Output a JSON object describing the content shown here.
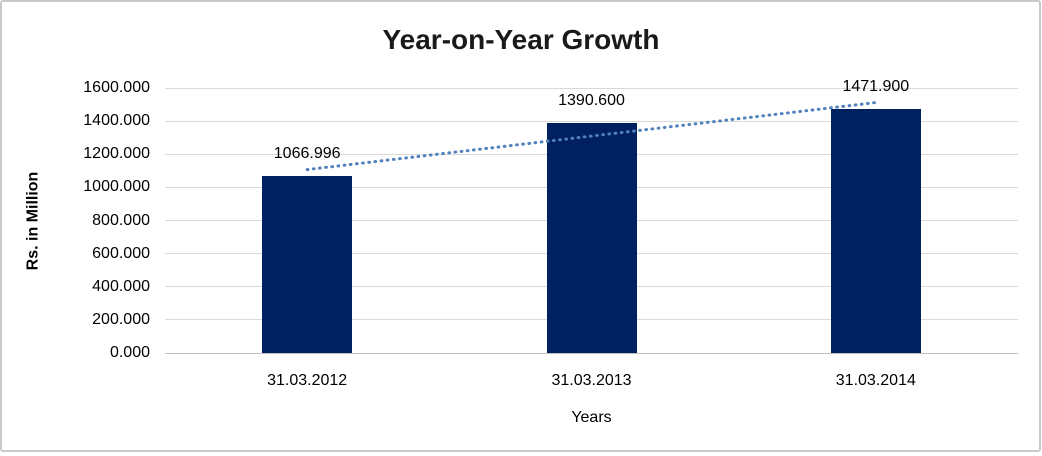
{
  "window": {
    "background": "#FFFFFF",
    "border_color": "#C9C9C9"
  },
  "chart_data": {
    "type": "bar",
    "title": "Year-on-Year Growth",
    "categories": [
      "31.03.2012",
      "31.03.2013",
      "31.03.2014"
    ],
    "values": [
      1066.996,
      1390.6,
      1471.9
    ],
    "data_labels": [
      "1066.996",
      "1390.600",
      "1471.900"
    ],
    "xlabel": "Years",
    "ylabel": "Rs. in Million",
    "ylim": [
      0,
      1600
    ],
    "ytick_step": 200,
    "ytick_labels": [
      "0.000",
      "200.000",
      "400.000",
      "600.000",
      "800.000",
      "1000.000",
      "1200.000",
      "1400.000",
      "1600.000"
    ],
    "grid": true,
    "legend": "none",
    "bar_color": "#002060",
    "gridline_color": "#D9D9D9",
    "axisline_color": "#BFBFBF",
    "trendline": {
      "style": "dotted",
      "color": "#4F81BD",
      "endpoint_values": [
        1107.38,
        1512.28
      ]
    }
  }
}
